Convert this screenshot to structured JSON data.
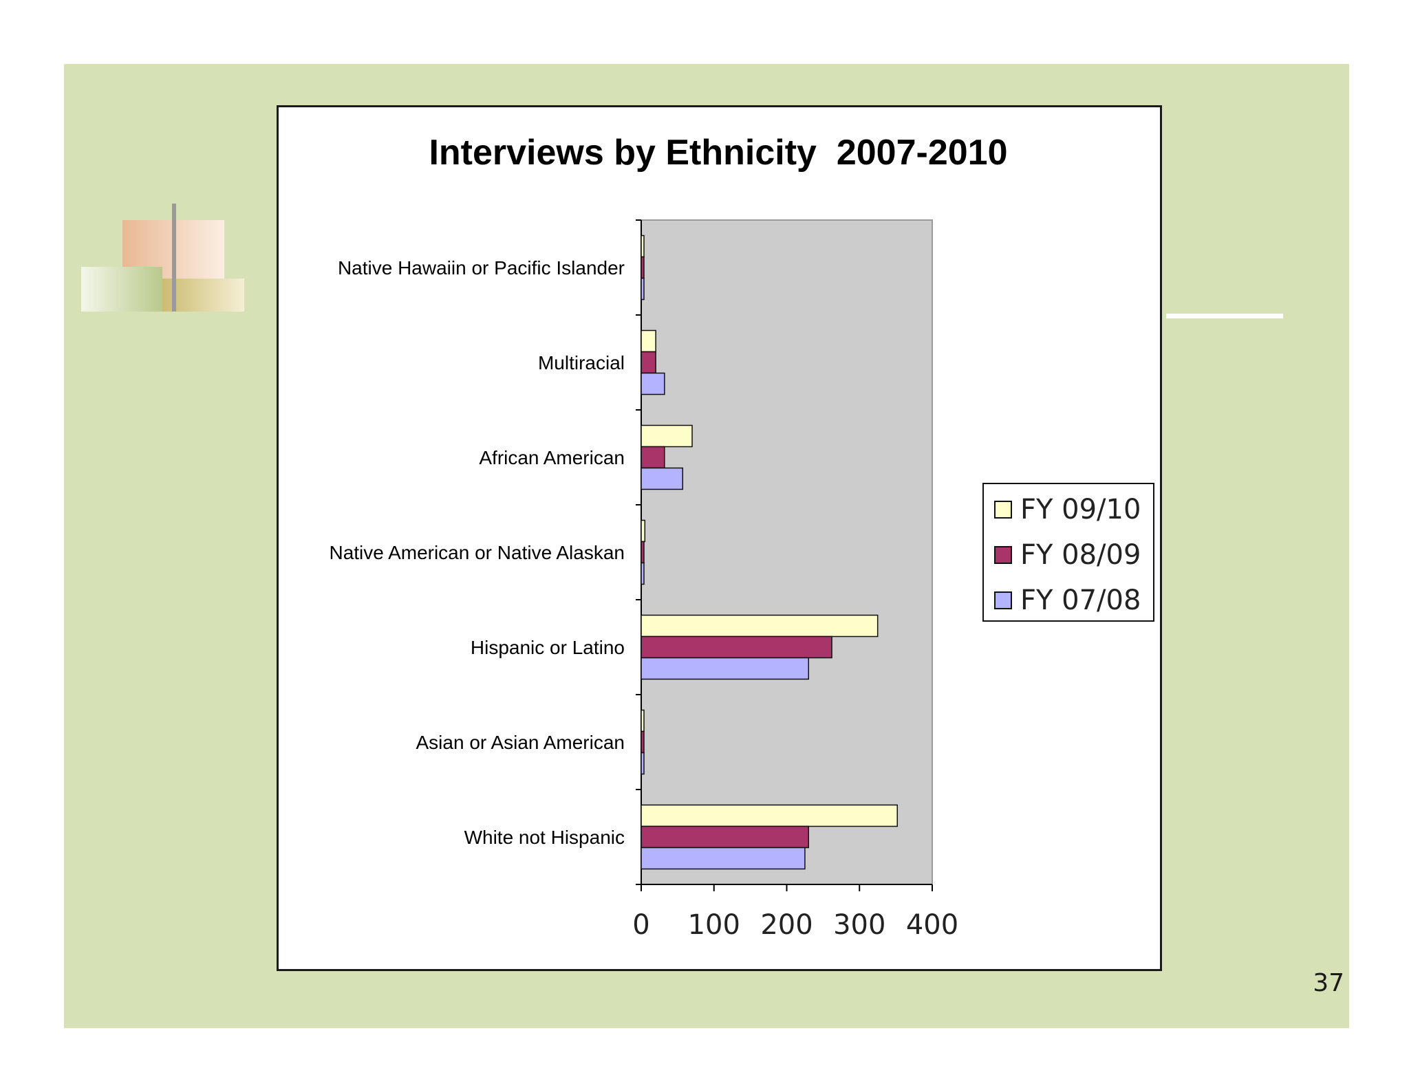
{
  "slide": {
    "page_number": "37",
    "colors": {
      "background": "#d6e1b5",
      "chart_background": "#ffffff",
      "plot_area": "#cccccc"
    }
  },
  "chart_data": {
    "type": "bar",
    "orientation": "horizontal",
    "title": "Interviews by Ethnicity  2007-2010",
    "categories": [
      "Native Hawaiin or Pacific Islander",
      "Multiracial",
      "African American",
      "Native American or Native Alaskan",
      "Hispanic or Latino",
      "Asian or Asian American",
      "White not Hispanic"
    ],
    "series": [
      {
        "name": "FY 09/10",
        "color": "#ffffcc",
        "values": [
          2,
          20,
          70,
          5,
          325,
          3,
          352
        ]
      },
      {
        "name": "FY 08/09",
        "color": "#a9346a",
        "values": [
          0,
          20,
          32,
          3,
          262,
          0,
          230
        ]
      },
      {
        "name": "FY 07/08",
        "color": "#b3b3ff",
        "values": [
          3,
          32,
          57,
          3,
          230,
          3,
          225
        ]
      }
    ],
    "xlim": [
      0,
      400
    ],
    "xticks": [
      "0",
      "100",
      "200",
      "300",
      "400"
    ],
    "grid": false,
    "legend_position": "right"
  }
}
